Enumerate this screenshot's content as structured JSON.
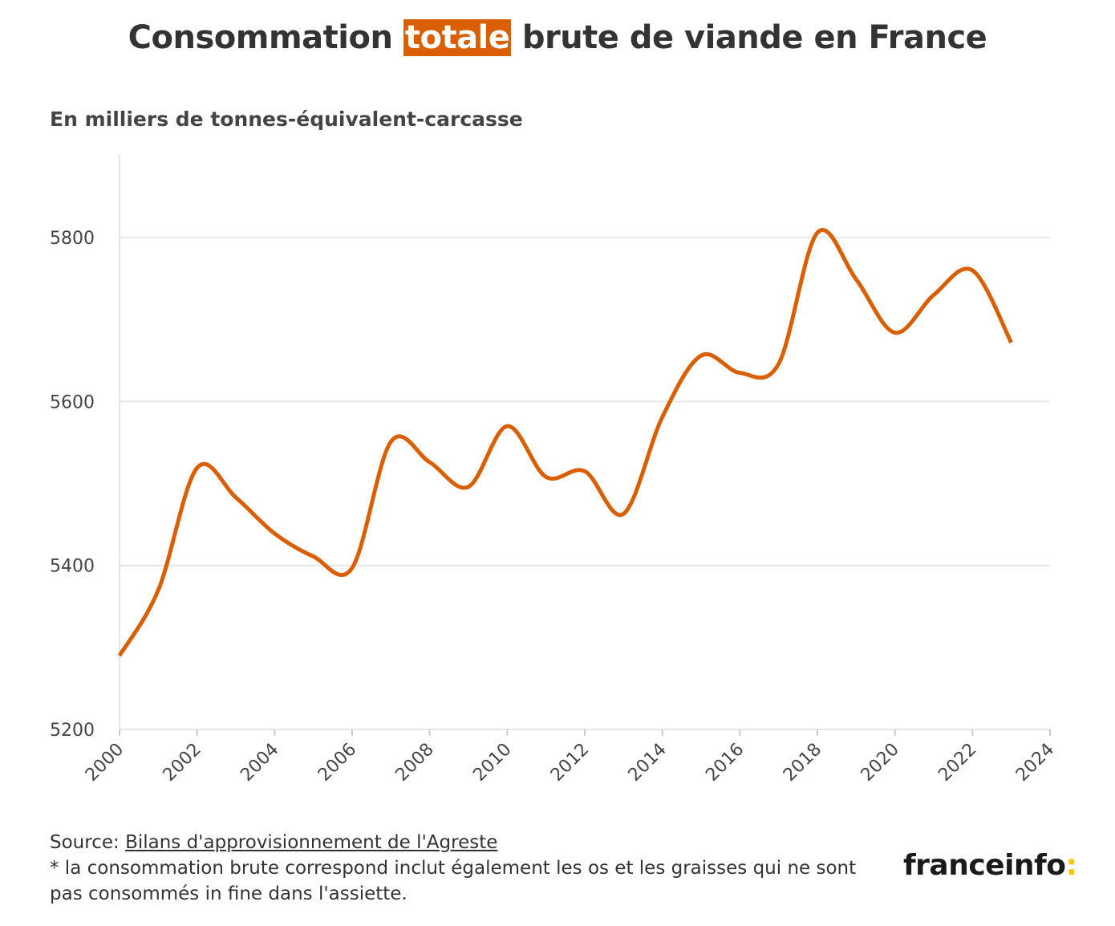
{
  "chart_data": {
    "type": "line",
    "title_parts": [
      "Consommation ",
      "totale",
      " brute de viande en France"
    ],
    "subtitle": "En milliers de tonnes-équivalent-carcasse",
    "x": [
      2000,
      2001,
      2002,
      2003,
      2004,
      2005,
      2006,
      2007,
      2008,
      2009,
      2010,
      2011,
      2012,
      2013,
      2014,
      2015,
      2016,
      2017,
      2018,
      2019,
      2020,
      2021,
      2022,
      2023
    ],
    "values": [
      5290,
      5370,
      5519,
      5483,
      5439,
      5411,
      5397,
      5551,
      5526,
      5496,
      5570,
      5508,
      5515,
      5463,
      5581,
      5656,
      5635,
      5646,
      5806,
      5749,
      5684,
      5730,
      5760,
      5672
    ],
    "xlim": [
      2000,
      2024
    ],
    "ylim": [
      5200,
      5900
    ],
    "xticks": [
      "2000",
      "2002",
      "2004",
      "2006",
      "2008",
      "2010",
      "2012",
      "2014",
      "2016",
      "2018",
      "2020",
      "2022",
      "2024"
    ],
    "yticks": [
      "5200",
      "5400",
      "5600",
      "5800"
    ],
    "grid": "horizontal",
    "line_color": "#d95f02",
    "highlight_color": "#d95f02"
  },
  "footer": {
    "source_label": "Source: ",
    "source_link": "Bilans d'approvisionnement de l'Agreste",
    "note": "* la consommation brute correspond inclut également les os et les graisses qui ne sont pas consommés in fine dans l'assiette."
  },
  "logo": {
    "text": "franceinfo",
    "colon": ":",
    "colon_color": "#fdc400"
  }
}
